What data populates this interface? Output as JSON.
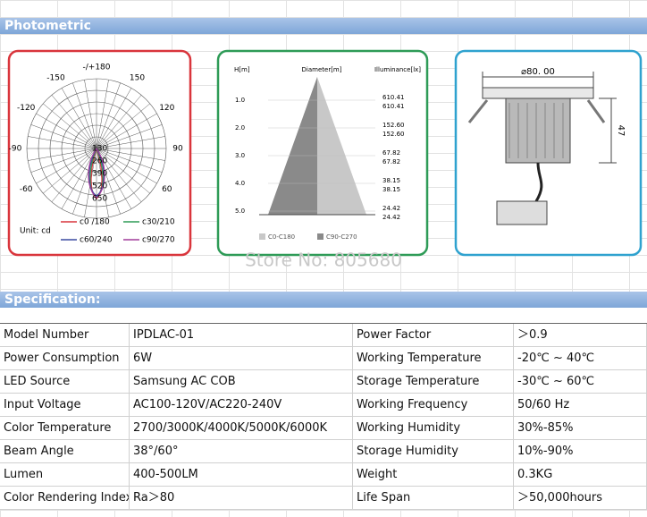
{
  "photometric": {
    "title": "Photometric",
    "polar": {
      "angle_labels": [
        "-/+180",
        "-150",
        "150",
        "-120",
        "120",
        "-90",
        "90",
        "-60",
        "60"
      ],
      "radial_labels": [
        "130",
        "260",
        "390",
        "520",
        "650"
      ],
      "unit": "Unit: cd",
      "legend": [
        "c0 /180",
        "c30/210",
        "c60/240",
        "c90/270"
      ]
    },
    "cone": {
      "headers": [
        "H[m]",
        "Diameter[m]",
        "Illuminance[lx]"
      ],
      "heights": [
        "1.0",
        "2.0",
        "3.0",
        "4.0",
        "5.0"
      ],
      "illuminance": [
        [
          "610.41",
          "610.41"
        ],
        [
          "152.60",
          "152.60"
        ],
        [
          "67.82",
          "67.82"
        ],
        [
          "38.15",
          "38.15"
        ],
        [
          "24.42",
          "24.42"
        ]
      ],
      "legend": [
        "C0-C180",
        "C90-C270"
      ]
    },
    "dimensions": {
      "diameter": "⌀80. 00",
      "height": "47"
    }
  },
  "watermark": "Store No: 805680",
  "specification": {
    "title": "Specification:",
    "rows": [
      [
        "Model Number",
        "IPDLAC-01",
        "Power Factor",
        "＞0.9"
      ],
      [
        "Power Consumption",
        "6W",
        "Working Temperature",
        "-20℃ ~ 40℃"
      ],
      [
        "LED Source",
        "Samsung AC COB",
        "Storage Temperature",
        "-30℃ ~ 60℃"
      ],
      [
        "Input Voltage",
        "AC100-120V/AC220-240V",
        "Working Frequency",
        "50/60 Hz"
      ],
      [
        "Color Temperature",
        "2700/3000K/4000K/5000K/6000K",
        "Working Humidity",
        "30%-85%"
      ],
      [
        "Beam Angle",
        "38°/60°",
        "Storage Humidity",
        "10%-90%"
      ],
      [
        "Lumen",
        "400-500LM",
        "Weight",
        "0.3KG"
      ],
      [
        "Color Rendering Index",
        "Ra＞80",
        "Life Span",
        "＞50,000hours"
      ]
    ]
  }
}
